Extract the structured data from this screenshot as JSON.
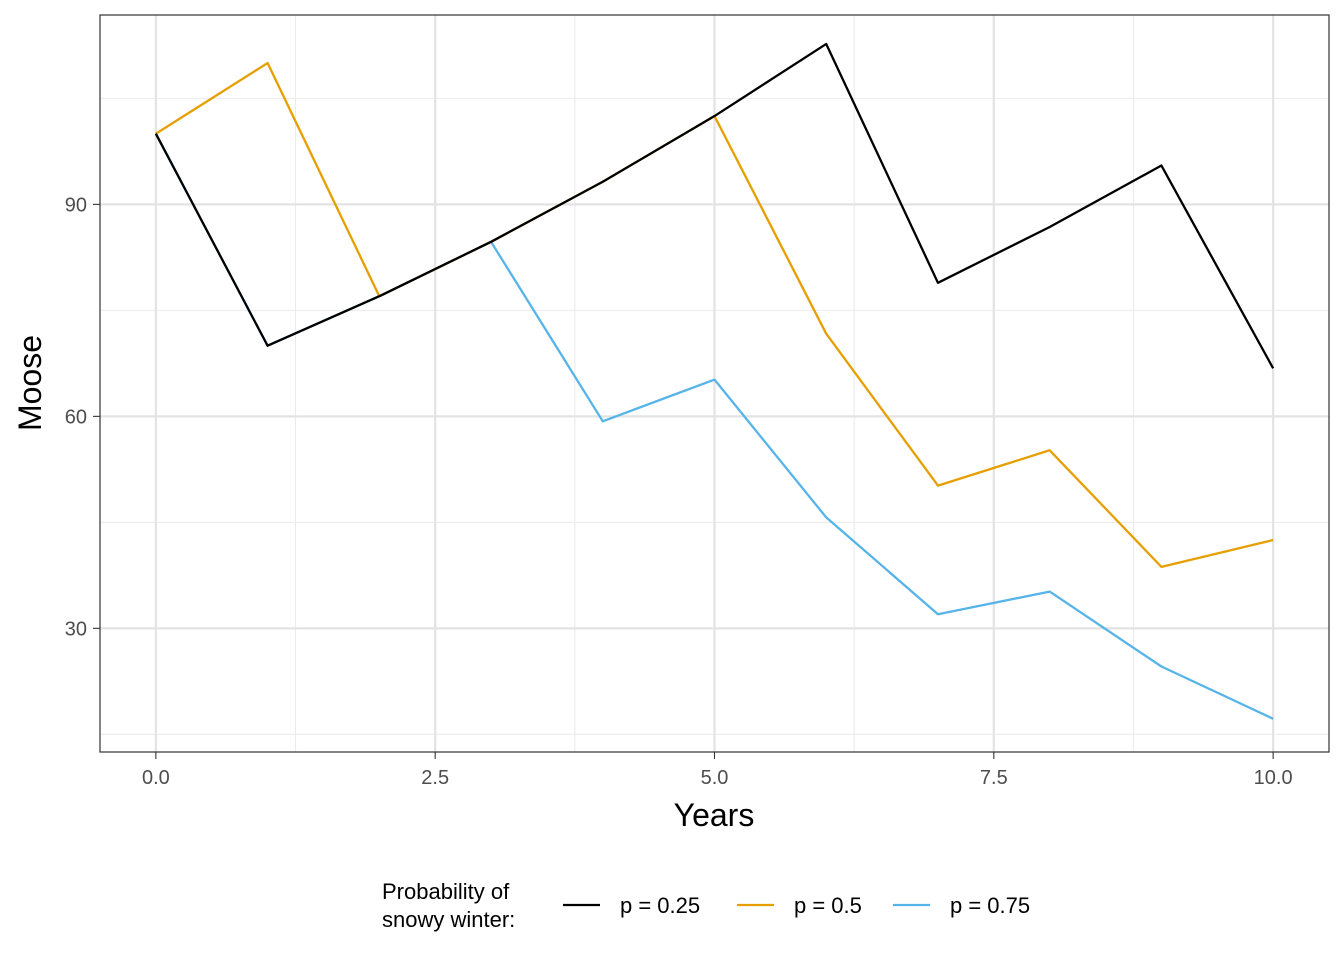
{
  "chart_data": {
    "type": "line",
    "xlabel": "Years",
    "ylabel": "Moose",
    "xlim": [
      -0.5,
      10.5
    ],
    "ylim": [
      12.5,
      116.8
    ],
    "x_ticks": [
      0.0,
      2.5,
      5.0,
      7.5,
      10.0
    ],
    "x_tick_labels": [
      "0.0",
      "2.5",
      "5.0",
      "7.5",
      "10.0"
    ],
    "y_ticks": [
      30,
      60,
      90
    ],
    "y_tick_labels": [
      "30",
      "60",
      "90"
    ],
    "x_minor_ticks": [
      1.25,
      3.75,
      6.25,
      8.75
    ],
    "y_minor_ticks": [
      15,
      45,
      75,
      105
    ],
    "grid": true,
    "legend": {
      "position": "bottom",
      "title_lines": [
        "Probability of",
        "snowy winter:"
      ]
    },
    "x": [
      0,
      1,
      2,
      3,
      4,
      5,
      6,
      7,
      8,
      9,
      10
    ],
    "series": [
      {
        "name": "p = 0.25",
        "color": "#000000",
        "values": [
          100.0,
          70.0,
          77.0,
          84.7,
          93.2,
          102.5,
          112.7,
          78.9,
          86.8,
          95.5,
          66.8
        ]
      },
      {
        "name": "p = 0.5",
        "color": "#E69F00",
        "values": [
          100.0,
          110.0,
          77.0,
          84.7,
          93.2,
          102.5,
          71.7,
          50.2,
          55.2,
          38.7,
          42.5
        ]
      },
      {
        "name": "p = 0.75",
        "color": "#56B4E9",
        "values": [
          100.0,
          70.0,
          77.0,
          84.7,
          59.3,
          65.2,
          45.7,
          32.0,
          35.2,
          24.6,
          17.2
        ]
      }
    ]
  }
}
